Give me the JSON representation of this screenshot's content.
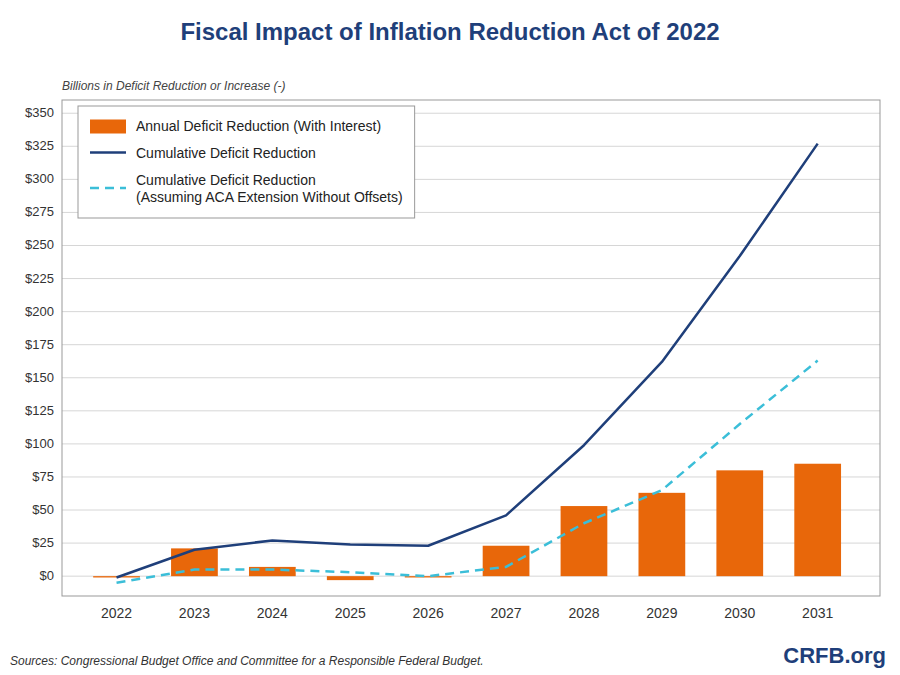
{
  "chart_data": {
    "type": "bar",
    "title": "Fiscal Impact of Inflation Reduction Act of 2022",
    "y_label": "Billions in Deficit Reduction or Increase (-)",
    "annotations": [
      "Sources: Congressional Budget Office and Committee for a Responsible Federal Budget.",
      "CRFB.org"
    ],
    "x": [
      2022,
      2023,
      2024,
      2025,
      2026,
      2027,
      2028,
      2029,
      2030,
      2031
    ],
    "series": [
      {
        "name": "Annual Deficit Reduction (With Interest)",
        "type": "bar",
        "color": "#E8670A",
        "values": [
          -1,
          21,
          7,
          -3,
          -1,
          23,
          53,
          63,
          80,
          85
        ]
      },
      {
        "name": "Cumulative Deficit Reduction",
        "type": "line",
        "color": "#1F3F7A",
        "line_style": "solid",
        "values": [
          -1,
          20,
          27,
          24,
          23,
          46,
          99,
          162,
          242,
          327
        ]
      },
      {
        "name": "Cumulative Deficit Reduction\n(Assuming ACA Extension Without Offsets)",
        "type": "line",
        "color": "#3BBED8",
        "line_style": "dashed",
        "values": [
          -5,
          5,
          5,
          3,
          0,
          7,
          40,
          65,
          115,
          163
        ]
      }
    ],
    "xlim": [
      2021.3,
      2031.8
    ],
    "xticks": [
      2022,
      2023,
      2024,
      2025,
      2026,
      2027,
      2028,
      2029,
      2030,
      2031
    ],
    "ylim": [
      -15,
      360
    ],
    "yticks": [
      {
        "value": 0,
        "label": "$0"
      },
      {
        "value": 25,
        "label": "$25"
      },
      {
        "value": 50,
        "label": "$50"
      },
      {
        "value": 75,
        "label": "$75"
      },
      {
        "value": 100,
        "label": "$100"
      },
      {
        "value": 125,
        "label": "$125"
      },
      {
        "value": 150,
        "label": "$150"
      },
      {
        "value": 175,
        "label": "$175"
      },
      {
        "value": 200,
        "label": "$200"
      },
      {
        "value": 225,
        "label": "$225"
      },
      {
        "value": 250,
        "label": "$250"
      },
      {
        "value": 275,
        "label": "$275"
      },
      {
        "value": 300,
        "label": "$300"
      },
      {
        "value": 325,
        "label": "$325"
      },
      {
        "value": 350,
        "label": "$350"
      }
    ],
    "grid": true,
    "legend": "upper left"
  }
}
